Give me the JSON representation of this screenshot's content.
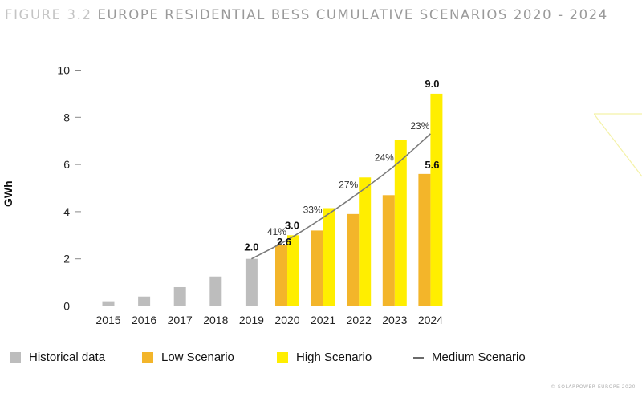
{
  "figure": {
    "number": "FIGURE 3.2",
    "title": "EUROPE RESIDENTIAL BESS CUMULATIVE SCENARIOS 2020 - 2024",
    "copyright": "© SOLARPOWER EUROPE 2020"
  },
  "colors": {
    "historical": "#bdbdbd",
    "low": "#f3b52a",
    "high": "#ffee00",
    "medium": "#7a7a7a"
  },
  "legend": {
    "historical": "Historical data",
    "low": "Low Scenario",
    "high": "High Scenario",
    "medium": "Medium Scenario"
  },
  "chart_data": {
    "type": "bar",
    "ylabel": "GWh",
    "xlabel": "",
    "ylim": [
      0,
      10
    ],
    "yticks": [
      0,
      2,
      4,
      6,
      8,
      10
    ],
    "categories": [
      "2015",
      "2016",
      "2017",
      "2018",
      "2019",
      "2020",
      "2021",
      "2022",
      "2023",
      "2024"
    ],
    "series": [
      {
        "name": "Historical data",
        "values": [
          0.2,
          0.4,
          0.8,
          1.25,
          2.0,
          null,
          null,
          null,
          null,
          null
        ]
      },
      {
        "name": "Low Scenario",
        "values": [
          null,
          null,
          null,
          null,
          null,
          2.6,
          3.2,
          3.9,
          4.7,
          5.6
        ]
      },
      {
        "name": "High Scenario",
        "values": [
          null,
          null,
          null,
          null,
          null,
          3.0,
          4.15,
          5.45,
          7.05,
          9.0
        ]
      },
      {
        "name": "Medium Scenario",
        "values": [
          null,
          null,
          null,
          null,
          2.0,
          2.8,
          3.75,
          4.8,
          5.95,
          7.3
        ]
      }
    ],
    "growth_labels": [
      {
        "category": "2020",
        "text": "41%"
      },
      {
        "category": "2021",
        "text": "33%"
      },
      {
        "category": "2022",
        "text": "27%"
      },
      {
        "category": "2023",
        "text": "24%"
      },
      {
        "category": "2024",
        "text": "23%"
      }
    ],
    "value_labels": [
      {
        "category": "2019",
        "text": "2.0"
      },
      {
        "category": "2020",
        "text": "3.0"
      },
      {
        "category": "2020",
        "text": "2.6"
      },
      {
        "category": "2024",
        "text": "9.0"
      },
      {
        "category": "2024",
        "text": "5.6"
      }
    ],
    "grid": false,
    "legend_position": "bottom"
  }
}
